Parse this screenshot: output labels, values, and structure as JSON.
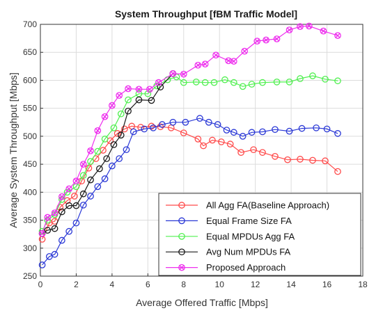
{
  "chart_data": {
    "type": "line",
    "title": "System Throughput [fBM Traffic Model]",
    "xlabel": "Average Offered Traffic [Mbps]",
    "ylabel": "Average System Throughput [Mbps]",
    "xlim": [
      0,
      18
    ],
    "ylim": [
      250,
      700
    ],
    "xticks": [
      0,
      2,
      4,
      6,
      8,
      10,
      12,
      14,
      16,
      18
    ],
    "yticks": [
      250,
      300,
      350,
      400,
      450,
      500,
      550,
      600,
      650,
      700
    ],
    "grid": true,
    "legend_position": "bottom-right",
    "series": [
      {
        "name": "All Agg FA(Baseline Approach)",
        "color": "#ff4a4a",
        "marker": "circle",
        "x": [
          0.1,
          0.5,
          0.8,
          1.1,
          1.5,
          1.9,
          2.3,
          2.7,
          3.1,
          3.5,
          3.9,
          4.3,
          4.7,
          5.1,
          5.6,
          6.2,
          6.7,
          7.3,
          8.0,
          8.8,
          9.1,
          9.6,
          10.1,
          10.6,
          11.2,
          11.9,
          12.4,
          13.1,
          13.8,
          14.5,
          15.2,
          15.9,
          16.6
        ],
        "y": [
          316,
          345,
          348,
          373,
          385,
          393,
          420,
          443,
          460,
          475,
          492,
          505,
          513,
          518,
          516,
          518,
          517,
          515,
          506,
          495,
          483,
          493,
          490,
          486,
          471,
          476,
          471,
          464,
          458,
          459,
          457,
          456,
          437
        ]
      },
      {
        "name": "Equal Frame Size FA",
        "color": "#2a38d6",
        "marker": "circle",
        "x": [
          0.1,
          0.5,
          0.8,
          1.2,
          1.6,
          2.0,
          2.4,
          2.8,
          3.2,
          3.6,
          4.0,
          4.4,
          4.8,
          5.2,
          5.8,
          6.3,
          6.8,
          7.4,
          8.1,
          8.9,
          9.4,
          9.9,
          10.4,
          10.8,
          11.3,
          11.8,
          12.4,
          13.1,
          13.9,
          14.6,
          15.4,
          16.0,
          16.6
        ],
        "y": [
          270,
          285,
          289,
          314,
          330,
          345,
          377,
          393,
          410,
          424,
          447,
          460,
          476,
          508,
          513,
          515,
          521,
          525,
          525,
          532,
          525,
          521,
          511,
          507,
          500,
          507,
          508,
          512,
          509,
          514,
          515,
          513,
          505
        ]
      },
      {
        "name": "Equal MPDUs Agg FA",
        "color": "#50f050",
        "marker": "circle",
        "x": [
          0.1,
          0.4,
          0.8,
          1.2,
          1.5,
          2.0,
          2.4,
          2.8,
          3.2,
          3.6,
          4.1,
          4.5,
          4.9,
          5.5,
          6.0,
          6.5,
          7.1,
          7.6,
          8.0,
          8.7,
          9.2,
          9.7,
          10.3,
          10.8,
          11.3,
          11.8,
          12.4,
          13.2,
          13.9,
          14.5,
          15.2,
          15.9,
          16.6
        ],
        "y": [
          330,
          350,
          360,
          387,
          400,
          410,
          430,
          455,
          473,
          495,
          515,
          540,
          565,
          576,
          576,
          590,
          601,
          606,
          596,
          597,
          596,
          596,
          601,
          596,
          589,
          593,
          596,
          597,
          597,
          603,
          608,
          602,
          599
        ]
      },
      {
        "name": "Avg Num MPDUs FA",
        "color": "#1a1a1a",
        "marker": "circle",
        "x": [
          0.1,
          0.4,
          0.8,
          1.2,
          1.6,
          2.0,
          2.4,
          2.8,
          3.3,
          3.7,
          4.1,
          4.5,
          4.9,
          5.5,
          6.2,
          6.7,
          7.4
        ],
        "y": [
          326,
          332,
          335,
          365,
          376,
          376,
          397,
          422,
          442,
          460,
          485,
          502,
          545,
          565,
          564,
          588,
          612
        ]
      },
      {
        "name": "Proposed Approach",
        "color": "#ee30ee",
        "marker": "x-circle",
        "x": [
          0.1,
          0.4,
          0.8,
          1.2,
          1.6,
          2.0,
          2.4,
          2.8,
          3.2,
          3.6,
          4.0,
          4.4,
          4.9,
          5.5,
          6.1,
          6.6,
          7.4,
          8.0,
          8.8,
          9.2,
          9.8,
          10.5,
          10.8,
          11.4,
          12.1,
          12.6,
          13.2,
          13.9,
          14.5,
          15.0,
          15.8,
          16.6
        ],
        "y": [
          326,
          355,
          363,
          392,
          406,
          420,
          450,
          474,
          510,
          535,
          555,
          573,
          585,
          584,
          584,
          596,
          612,
          611,
          627,
          629,
          645,
          635,
          634,
          652,
          670,
          672,
          674,
          690,
          696,
          697,
          688,
          680
        ]
      }
    ]
  }
}
